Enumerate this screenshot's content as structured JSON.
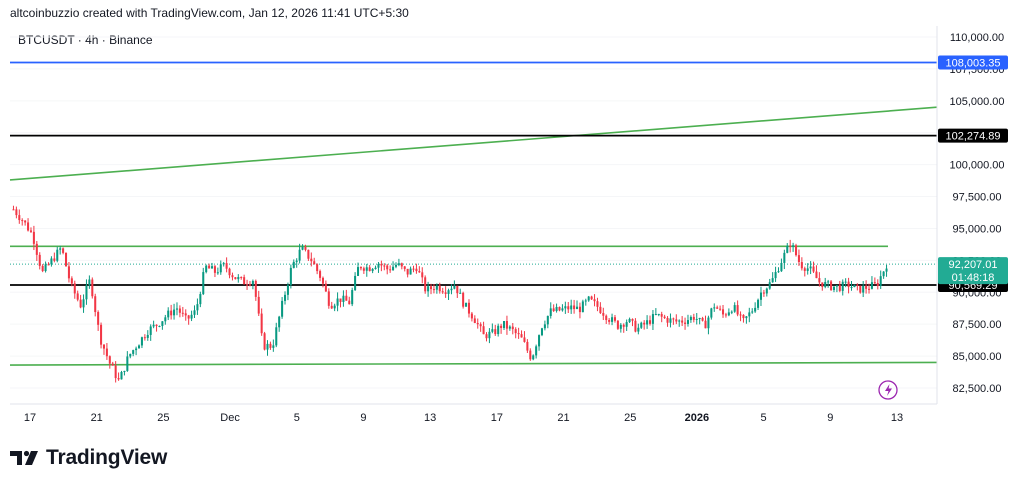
{
  "header": {
    "credit": "altcoinbuzzio created with TradingView.com, Jan 12, 2026 11:41 UTC+5:30",
    "symbol": "BTCUSDT · 4h · Binance"
  },
  "brand": {
    "name": "TradingView",
    "icon": "tradingview-logo-icon"
  },
  "colors": {
    "up": "#089981",
    "down": "#f23645",
    "support": "#000000",
    "trendline": "#4caf50",
    "blue_level": "#2962ff",
    "price_tag": "#22ab94",
    "bolt": "#9c27b0"
  },
  "chart_data": {
    "type": "candlestick",
    "ylim": [
      81000,
      111500
    ],
    "y_ticks": [
      "110,000.00",
      "107,500.00",
      "105,000.00",
      "102,500.00",
      "100,000.00",
      "97,500.00",
      "95,000.00",
      "92,500.00",
      "90,000.00",
      "87,500.00",
      "85,000.00",
      "82,500.00"
    ],
    "y_tick_values": [
      110000,
      107500,
      105000,
      102500,
      100000,
      97500,
      95000,
      92500,
      90000,
      87500,
      85000,
      82500
    ],
    "x_ticks": [
      "17",
      "21",
      "25",
      "Dec",
      "5",
      "9",
      "13",
      "17",
      "21",
      "25",
      "2026",
      "5",
      "9",
      "13"
    ],
    "x_tick_bold": [
      "Dec",
      "2026"
    ],
    "horizontal_levels": [
      {
        "value": 108003.35,
        "label": "108,003.35",
        "color": "#2962ff"
      },
      {
        "value": 102274.89,
        "label": "102,274.89",
        "color": "#000000"
      },
      {
        "value": 90569.29,
        "label": "90,569.29",
        "color": "#000000"
      }
    ],
    "current_price": {
      "value": 92207.01,
      "label": "92,207.01",
      "countdown": "01:48:18"
    },
    "trendlines": [
      {
        "name": "",
        "from": 98800,
        "to": 104500
      },
      {
        "name": "",
        "from": 93600,
        "to": 93600
      },
      {
        "name": "",
        "from": 84300,
        "to": 84500
      }
    ],
    "close_path": [
      96500,
      95600,
      94500,
      91500,
      92500,
      93500,
      90500,
      89000,
      91000,
      86500,
      84500,
      83000,
      85000,
      86000,
      87000,
      87500,
      88200,
      88800,
      87800,
      88500,
      92000,
      91600,
      92100,
      91200,
      90800,
      91000,
      85800,
      85800,
      89000,
      92000,
      93400,
      92600,
      91200,
      89000,
      89500,
      89200,
      92100,
      91900,
      92300,
      91800,
      92200,
      91500,
      92000,
      90100,
      90500,
      90200,
      90600,
      89000,
      88000,
      86600,
      86800,
      87500,
      87000,
      86300,
      84800,
      87300,
      88500,
      88600,
      88800,
      88700,
      89400,
      88800,
      88000,
      87400,
      87800,
      87100,
      87600,
      88200,
      87900,
      87700,
      87800,
      88100,
      87300,
      89000,
      88200,
      88900,
      87600,
      88600,
      90100,
      90800,
      92400,
      93900,
      92200,
      91800,
      90800,
      90500,
      90400,
      90600,
      90200,
      90400,
      90600,
      92200
    ]
  }
}
